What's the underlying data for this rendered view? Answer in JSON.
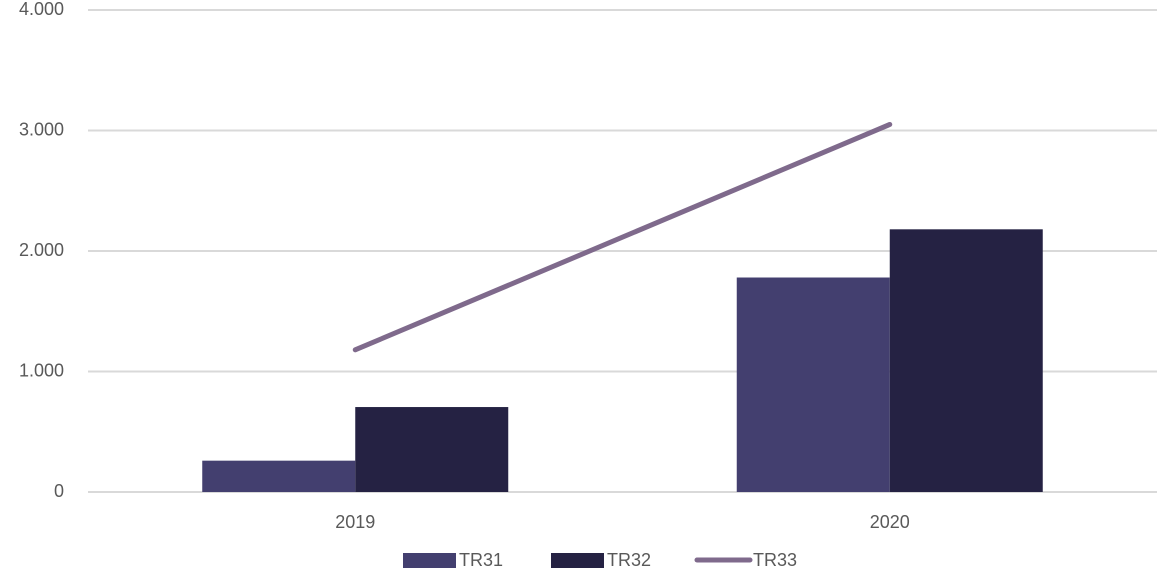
{
  "chart_data": {
    "type": "bar",
    "categories": [
      "2019",
      "2020"
    ],
    "series": [
      {
        "name": "TR31",
        "type": "bar",
        "color": "#433f6f",
        "values": [
          260,
          1780
        ]
      },
      {
        "name": "TR32",
        "type": "bar",
        "color": "#252243",
        "values": [
          705,
          2180
        ]
      },
      {
        "name": "TR33",
        "type": "line",
        "color": "#7f6a8c",
        "values": [
          1180,
          3050
        ]
      }
    ],
    "ylim": [
      0,
      4000
    ],
    "yticks": [
      0,
      {
        "value": 1000,
        "label": "1.000"
      },
      {
        "value": 2000,
        "label": "2.000"
      },
      {
        "value": 3000,
        "label": "3.000"
      },
      {
        "value": 4000,
        "label": "4.000"
      }
    ],
    "grid": true,
    "legend": "bottom"
  }
}
